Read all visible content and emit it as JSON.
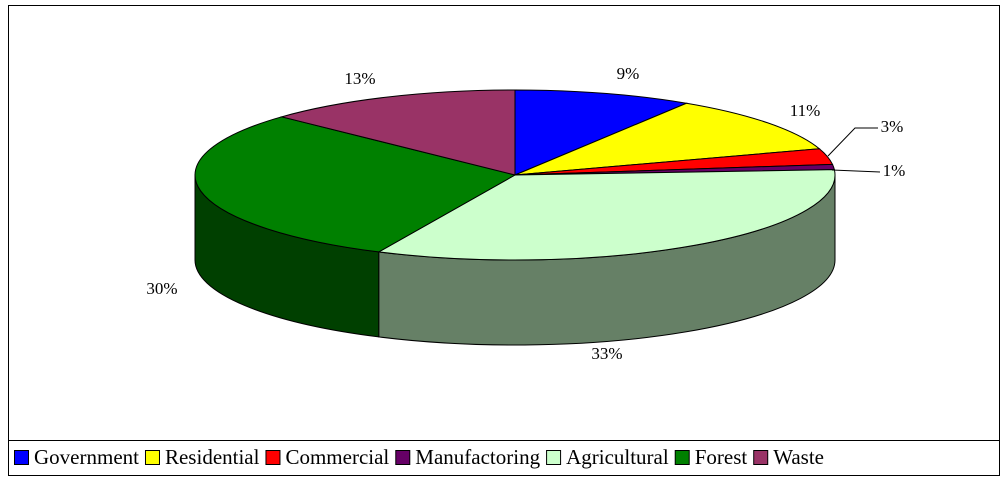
{
  "chart_data": {
    "type": "pie",
    "categories": [
      "Government",
      "Residential",
      "Commercial",
      "Manufactoring",
      "Agricultural",
      "Forest",
      "Waste"
    ],
    "values": [
      9,
      11,
      3,
      1,
      33,
      30,
      13
    ],
    "value_labels": [
      "9%",
      "11%",
      "3%",
      "1%",
      "33%",
      "30%",
      "13%"
    ],
    "colors": [
      "#0000ff",
      "#ffff00",
      "#ff0000",
      "#660066",
      "#ccffcc",
      "#008000",
      "#993366"
    ],
    "legend": "bottom"
  }
}
